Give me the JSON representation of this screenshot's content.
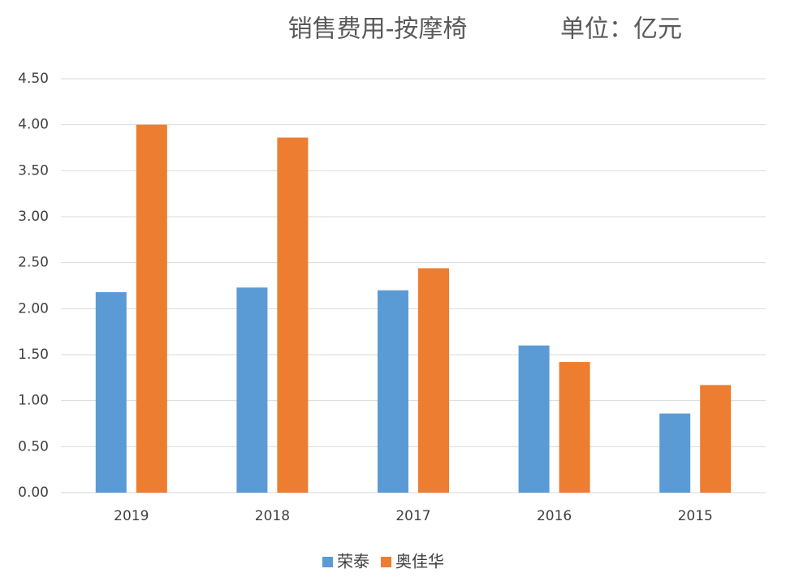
{
  "chart_data": {
    "type": "bar",
    "title": "销售费用-按摩椅",
    "subtitle": "单位：亿元",
    "categories": [
      "2019",
      "2018",
      "2017",
      "2016",
      "2015"
    ],
    "series": [
      {
        "name": "荣泰",
        "color": "#5b9bd5",
        "values": [
          2.18,
          2.23,
          2.2,
          1.6,
          0.86
        ]
      },
      {
        "name": "奥佳华",
        "color": "#ed7d31",
        "values": [
          4.0,
          3.86,
          2.44,
          1.42,
          1.17
        ]
      }
    ],
    "ylim": [
      0,
      4.5
    ],
    "yticks": [
      {
        "value": 0,
        "label": "0.00"
      },
      {
        "value": 0.5,
        "label": "0.50"
      },
      {
        "value": 1,
        "label": "1.00"
      },
      {
        "value": 1.5,
        "label": "1.50"
      },
      {
        "value": 2,
        "label": "2.00"
      },
      {
        "value": 2.5,
        "label": "2.50"
      },
      {
        "value": 3,
        "label": "3.00"
      },
      {
        "value": 3.5,
        "label": "3.50"
      },
      {
        "value": 4,
        "label": "4.00"
      },
      {
        "value": 4.5,
        "label": "4.50"
      }
    ],
    "grid": true,
    "legend": "bottom"
  }
}
